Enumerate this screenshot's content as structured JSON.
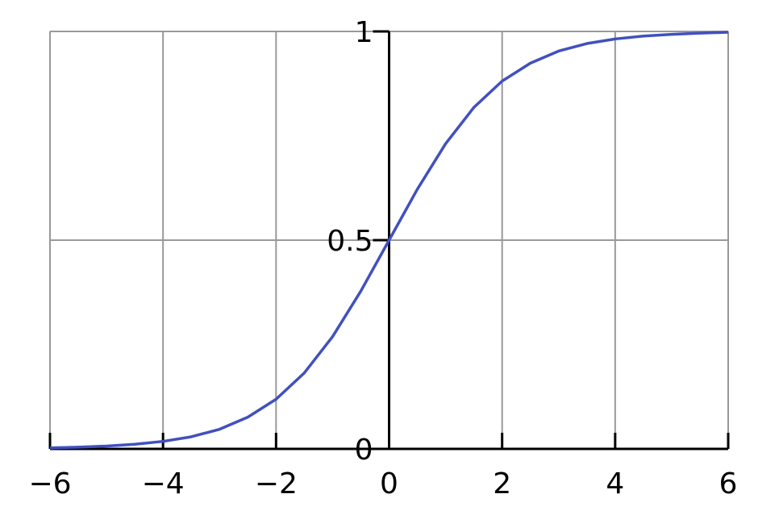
{
  "chart_data": {
    "type": "line",
    "x": [
      -6,
      -5.5,
      -5,
      -4.5,
      -4,
      -3.5,
      -3,
      -2.5,
      -2,
      -1.5,
      -1,
      -0.5,
      0,
      0.5,
      1,
      1.5,
      2,
      2.5,
      3,
      3.5,
      4,
      4.5,
      5,
      5.5,
      6
    ],
    "values": [
      0.0025,
      0.0041,
      0.0067,
      0.011,
      0.018,
      0.029,
      0.047,
      0.076,
      0.119,
      0.182,
      0.269,
      0.378,
      0.5,
      0.622,
      0.731,
      0.818,
      0.881,
      0.924,
      0.953,
      0.971,
      0.982,
      0.989,
      0.993,
      0.996,
      0.998
    ],
    "color": "#4150bf",
    "xlim": [
      -6,
      6
    ],
    "ylim": [
      0,
      1
    ],
    "xticks": [
      {
        "value": -6,
        "label": "−6"
      },
      {
        "value": -4,
        "label": "−4"
      },
      {
        "value": -2,
        "label": "−2"
      },
      0,
      2,
      4,
      6
    ],
    "yticks": [
      0,
      0.5,
      1
    ],
    "grid": true
  }
}
